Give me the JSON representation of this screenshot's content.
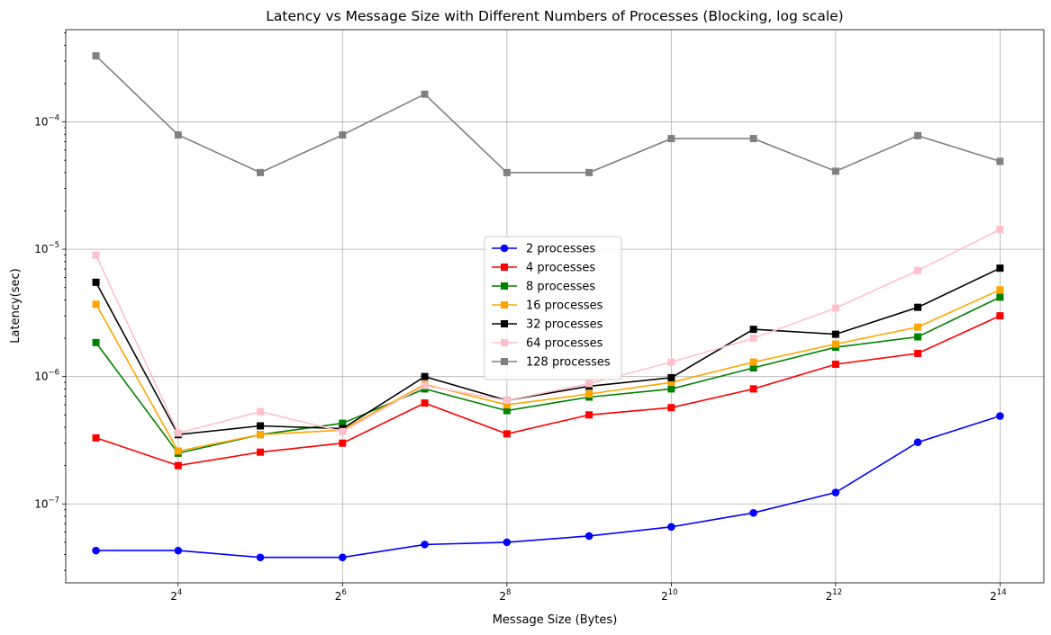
{
  "chart_data": {
    "type": "line",
    "title": "Latency vs Message Size with Different Numbers of Processes (Blocking, log scale)",
    "xlabel": "Message Size (Bytes)",
    "ylabel": "Latency(sec)",
    "x_scale": "log2",
    "y_scale": "log10",
    "x": [
      8,
      16,
      32,
      64,
      128,
      256,
      512,
      1024,
      2048,
      4096,
      8192,
      16384
    ],
    "xlim": [
      6.2,
      23700
    ],
    "ylim": [
      2.4e-08,
      0.00053
    ],
    "x_ticks": [
      {
        "base": "2",
        "exp": "4",
        "value": 16
      },
      {
        "base": "2",
        "exp": "6",
        "value": 64
      },
      {
        "base": "2",
        "exp": "8",
        "value": 256
      },
      {
        "base": "2",
        "exp": "10",
        "value": 1024
      },
      {
        "base": "2",
        "exp": "12",
        "value": 4096
      },
      {
        "base": "2",
        "exp": "14",
        "value": 16384
      }
    ],
    "y_ticks": [
      {
        "base": "10",
        "exp": "−7",
        "value": 1e-07
      },
      {
        "base": "10",
        "exp": "−6",
        "value": 1e-06
      },
      {
        "base": "10",
        "exp": "−5",
        "value": 1e-05
      },
      {
        "base": "10",
        "exp": "−4",
        "value": 0.0001
      }
    ],
    "grid": true,
    "legend_position": "center",
    "series": [
      {
        "name": "2 processes",
        "color": "#0000ff",
        "marker": "circle",
        "values": [
          4.3e-08,
          4.3e-08,
          3.8e-08,
          3.8e-08,
          4.8e-08,
          5e-08,
          5.6e-08,
          6.6e-08,
          8.5e-08,
          1.23e-07,
          3.05e-07,
          4.9e-07
        ]
      },
      {
        "name": "4 processes",
        "color": "#ff0000",
        "marker": "square",
        "values": [
          3.3e-07,
          2e-07,
          2.55e-07,
          3e-07,
          6.2e-07,
          3.55e-07,
          5e-07,
          5.7e-07,
          8e-07,
          1.25e-06,
          1.52e-06,
          3e-06
        ]
      },
      {
        "name": "8 processes",
        "color": "#008000",
        "marker": "square",
        "values": [
          1.85e-06,
          2.5e-07,
          3.5e-07,
          4.3e-07,
          8e-07,
          5.4e-07,
          6.9e-07,
          8e-07,
          1.17e-06,
          1.7e-06,
          2.05e-06,
          4.2e-06
        ]
      },
      {
        "name": "16 processes",
        "color": "#ffa500",
        "marker": "square",
        "values": [
          3.7e-06,
          2.6e-07,
          3.5e-07,
          3.8e-07,
          8.7e-07,
          6e-07,
          7.3e-07,
          9e-07,
          1.3e-06,
          1.8e-06,
          2.45e-06,
          4.8e-06
        ]
      },
      {
        "name": "32 processes",
        "color": "#000000",
        "marker": "square",
        "values": [
          5.5e-06,
          3.5e-07,
          4.1e-07,
          3.9e-07,
          1e-06,
          6.5e-07,
          8.4e-07,
          9.8e-07,
          2.35e-06,
          2.15e-06,
          3.5e-06,
          7.1e-06
        ]
      },
      {
        "name": "64 processes",
        "color": "#ffc0cb",
        "marker": "square",
        "values": [
          9e-06,
          3.6e-07,
          5.3e-07,
          3.7e-07,
          8.5e-07,
          6.5e-07,
          8.8e-07,
          1.3e-06,
          2e-06,
          3.45e-06,
          6.8e-06,
          1.43e-05
        ]
      },
      {
        "name": "128 processes",
        "color": "#808080",
        "marker": "square",
        "values": [
          0.00033,
          7.9e-05,
          4e-05,
          7.9e-05,
          0.000165,
          4e-05,
          4e-05,
          7.4e-05,
          7.4e-05,
          4.1e-05,
          7.8e-05,
          4.9e-05
        ]
      }
    ]
  }
}
